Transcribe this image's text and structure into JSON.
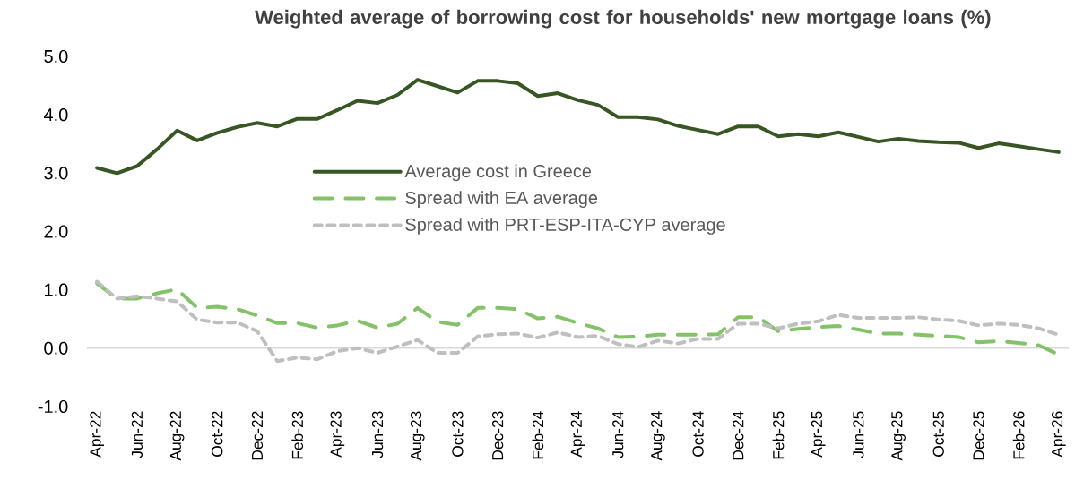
{
  "chart_data": {
    "type": "line",
    "title": "Weighted average of borrowing cost for households' new mortgage loans (%)",
    "categories": [
      "Apr-22",
      null,
      "Jun-22",
      null,
      "Aug-22",
      null,
      "Oct-22",
      null,
      "Dec-22",
      null,
      "Feb-23",
      null,
      "Apr-23",
      null,
      "Jun-23",
      null,
      "Aug-23",
      null,
      "Oct-23",
      null,
      "Dec-23",
      null,
      "Feb-24",
      null,
      "Apr-24",
      null,
      "Jun-24",
      null,
      "Aug-24",
      null,
      "Oct-24",
      null,
      "Dec-24",
      null,
      "Feb-25",
      null,
      "Apr-25",
      null,
      "Jun-25",
      null,
      "Aug-25",
      null,
      "Oct-25",
      null,
      "Dec-25",
      null,
      "Feb-26",
      null,
      "Apr-26"
    ],
    "series": [
      {
        "name": "Average cost in Greece",
        "color": "#375623",
        "line_style": "solid",
        "values": [
          3.09,
          3.0,
          3.12,
          3.41,
          3.73,
          3.56,
          3.69,
          3.79,
          3.86,
          3.8,
          3.93,
          3.93,
          4.08,
          4.24,
          4.2,
          4.34,
          4.6,
          4.49,
          4.38,
          4.58,
          4.58,
          4.54,
          4.32,
          4.37,
          4.25,
          4.17,
          3.96,
          3.96,
          3.92,
          3.81,
          3.74,
          3.67,
          3.8,
          3.8,
          3.63,
          3.67,
          3.63,
          3.7,
          3.62,
          3.54,
          3.59,
          3.55,
          3.53,
          3.52,
          3.43,
          3.51,
          3.46,
          3.41,
          3.36
        ]
      },
      {
        "name": "Spread with EA average",
        "color": "#84c26a",
        "line_style": "dashed",
        "values": [
          1.11,
          0.85,
          0.85,
          0.94,
          1.01,
          0.69,
          0.71,
          0.67,
          0.56,
          0.43,
          0.43,
          0.35,
          0.39,
          0.47,
          0.35,
          0.42,
          0.69,
          0.45,
          0.4,
          0.69,
          0.69,
          0.67,
          0.51,
          0.54,
          0.43,
          0.34,
          0.19,
          0.2,
          0.23,
          0.23,
          0.23,
          0.24,
          0.53,
          0.53,
          0.29,
          0.33,
          0.36,
          0.38,
          0.32,
          0.25,
          0.25,
          0.23,
          0.21,
          0.19,
          0.1,
          0.12,
          0.09,
          0.05,
          -0.11
        ]
      },
      {
        "name": "Spread with PRT-ESP-ITA-CYP average",
        "color": "#bfbfbf",
        "line_style": "dotted",
        "values": [
          1.14,
          0.85,
          0.89,
          0.85,
          0.8,
          0.49,
          0.44,
          0.44,
          0.29,
          -0.22,
          -0.16,
          -0.19,
          -0.05,
          0.0,
          -0.08,
          0.03,
          0.14,
          -0.08,
          -0.08,
          0.2,
          0.24,
          0.25,
          0.18,
          0.27,
          0.19,
          0.21,
          0.07,
          0.02,
          0.13,
          0.08,
          0.16,
          0.16,
          0.42,
          0.42,
          0.34,
          0.42,
          0.46,
          0.57,
          0.52,
          0.52,
          0.52,
          0.53,
          0.49,
          0.47,
          0.39,
          0.42,
          0.4,
          0.34,
          0.23
        ]
      }
    ],
    "ylim": [
      -1,
      5
    ],
    "yticks": [
      {
        "value": -1,
        "label": "-1.0"
      },
      {
        "value": 0,
        "label": "0.0"
      },
      {
        "value": 1,
        "label": "1.0"
      },
      {
        "value": 2,
        "label": "2.0"
      },
      {
        "value": 3,
        "label": "3.0"
      },
      {
        "value": 4,
        "label": "4.0"
      },
      {
        "value": 5,
        "label": "5.0"
      }
    ],
    "legend": "center",
    "ref_lines": [
      {
        "axis": "y",
        "value": 0,
        "color": "#d9d9d9"
      }
    ]
  }
}
